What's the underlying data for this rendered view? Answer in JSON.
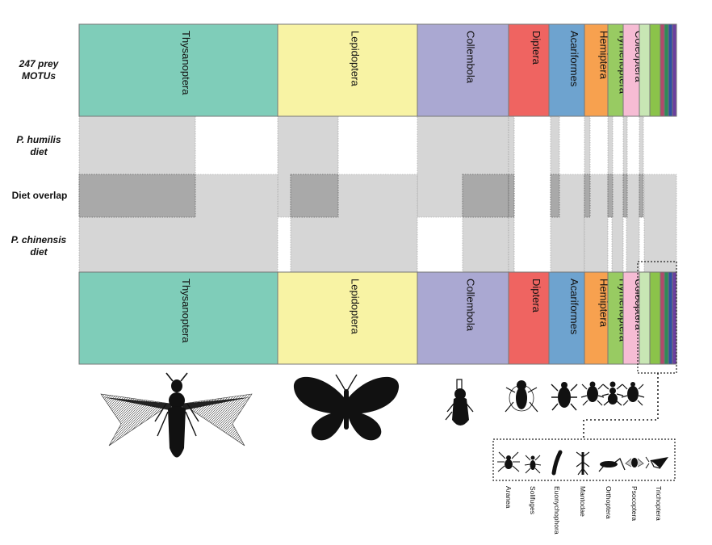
{
  "row_labels": {
    "top_line1": "247 prey",
    "top_line2": "MOTUs",
    "humilis_line1": "P. humilis",
    "humilis_line2": "diet",
    "overlap": "Diet overlap",
    "chinensis_line1": "P. chinensis",
    "chinensis_line2": "diet"
  },
  "orders": [
    {
      "name": "Thysanoptera",
      "color": "#7fcdb9",
      "icon": "thrips-silhouette"
    },
    {
      "name": "Lepidoptera",
      "color": "#f8f3a4",
      "icon": "butterfly-silhouette"
    },
    {
      "name": "Collembola",
      "color": "#aaa8d2",
      "icon": "springtail-silhouette"
    },
    {
      "name": "Diptera",
      "color": "#ef6461",
      "icon": "fly-silhouette"
    },
    {
      "name": "Acariformes",
      "color": "#6ea3cf",
      "icon": "mite-silhouette"
    },
    {
      "name": "Hemiptera",
      "color": "#f7a14f",
      "icon": "bug-silhouette"
    },
    {
      "name": "Hymenoptera",
      "color": "#98cb62",
      "icon": "ant-silhouette"
    },
    {
      "name": "Coleoptera",
      "color": "#f6bcd4",
      "icon": "beetle-silhouette"
    },
    {
      "name": "",
      "color": "#c8e6b4"
    },
    {
      "name": "",
      "color": "#8bc34a"
    },
    {
      "name": "",
      "color": "#b24a6a"
    },
    {
      "name": "",
      "color": "#2e8b57"
    },
    {
      "name": "",
      "color": "#2f4fa3"
    },
    {
      "name": "",
      "color": "#6b3fa0"
    }
  ],
  "minor_orders": [
    {
      "name": "Aranea",
      "icon": "spider-silhouette"
    },
    {
      "name": "Solifuges",
      "icon": "solifuge-silhouette"
    },
    {
      "name": "Euonychophora",
      "icon": "velvet-worm-silhouette"
    },
    {
      "name": "Mantodae",
      "icon": "mantis-silhouette"
    },
    {
      "name": "Orthoptera",
      "icon": "grasshopper-silhouette"
    },
    {
      "name": "Psocoptera",
      "icon": "booklouse-silhouette"
    },
    {
      "name": "Trichoptera",
      "icon": "caddisfly-silhouette"
    }
  ],
  "colors": {
    "diet_fill": "#d6d6d6",
    "overlap_fill": "#a9a9a9",
    "outline": "#555555"
  }
}
